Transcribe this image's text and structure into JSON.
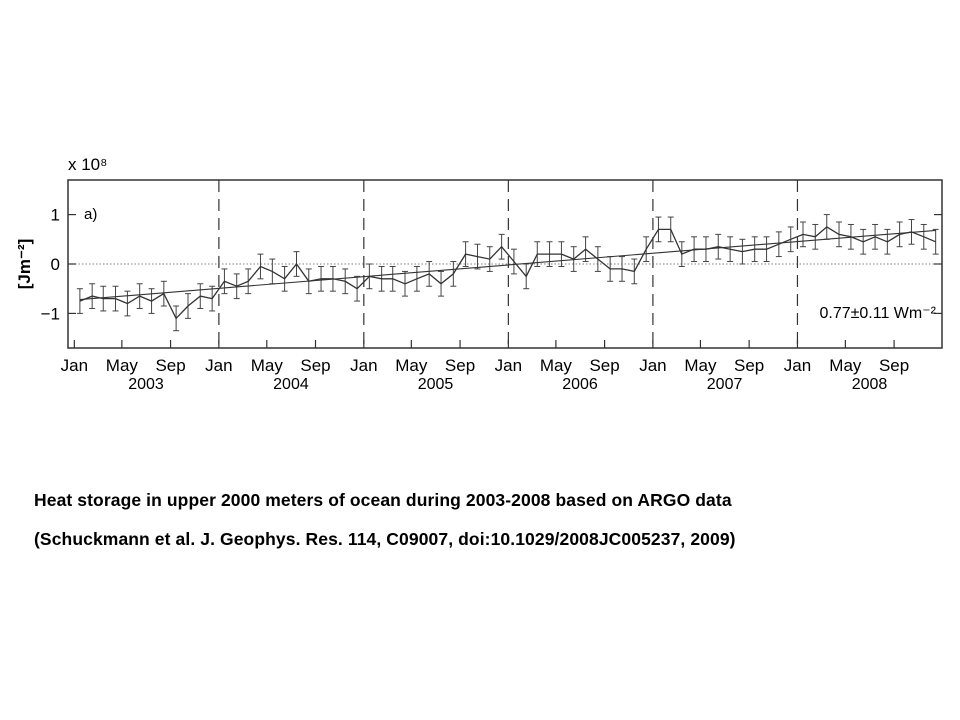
{
  "chart_data": {
    "type": "line",
    "panel_label": "a)",
    "ylabel": "[Jm⁻²]",
    "y_multiplier": "x 10⁸",
    "ylim": [
      -1.7,
      1.7
    ],
    "yticks": [
      -1,
      0,
      1
    ],
    "ytick_labels": [
      "−1",
      "0",
      "1"
    ],
    "xlim": [
      "2002-12-16",
      "2008-12-31"
    ],
    "month_ticks": [
      {
        "date": "2003-01-01",
        "label": "Jan"
      },
      {
        "date": "2003-05-01",
        "label": "May"
      },
      {
        "date": "2003-09-01",
        "label": "Sep"
      },
      {
        "date": "2004-01-01",
        "label": "Jan"
      },
      {
        "date": "2004-05-01",
        "label": "May"
      },
      {
        "date": "2004-09-01",
        "label": "Sep"
      },
      {
        "date": "2005-01-01",
        "label": "Jan"
      },
      {
        "date": "2005-05-01",
        "label": "May"
      },
      {
        "date": "2005-09-01",
        "label": "Sep"
      },
      {
        "date": "2006-01-01",
        "label": "Jan"
      },
      {
        "date": "2006-05-01",
        "label": "May"
      },
      {
        "date": "2006-09-01",
        "label": "Sep"
      },
      {
        "date": "2007-01-01",
        "label": "Jan"
      },
      {
        "date": "2007-05-01",
        "label": "May"
      },
      {
        "date": "2007-09-01",
        "label": "Sep"
      },
      {
        "date": "2008-01-01",
        "label": "Jan"
      },
      {
        "date": "2008-05-01",
        "label": "May"
      },
      {
        "date": "2008-09-01",
        "label": "Sep"
      }
    ],
    "year_labels": [
      {
        "date": "2003-07-01",
        "label": "2003"
      },
      {
        "date": "2004-07-01",
        "label": "2004"
      },
      {
        "date": "2005-07-01",
        "label": "2005"
      },
      {
        "date": "2006-07-01",
        "label": "2006"
      },
      {
        "date": "2007-07-01",
        "label": "2007"
      },
      {
        "date": "2008-07-01",
        "label": "2008"
      }
    ],
    "year_boundaries": [
      "2004-01-01",
      "2005-01-01",
      "2006-01-01",
      "2007-01-01",
      "2008-01-01"
    ],
    "series": [
      {
        "x": [
          "2003-01-15",
          "2003-02-15",
          "2003-03-15",
          "2003-04-15",
          "2003-05-15",
          "2003-06-15",
          "2003-07-15",
          "2003-08-15",
          "2003-09-15",
          "2003-10-15",
          "2003-11-15",
          "2003-12-15",
          "2004-01-15",
          "2004-02-15",
          "2004-03-15",
          "2004-04-15",
          "2004-05-15",
          "2004-06-15",
          "2004-07-15",
          "2004-08-15",
          "2004-09-15",
          "2004-10-15",
          "2004-11-15",
          "2004-12-15",
          "2005-01-15",
          "2005-02-15",
          "2005-03-15",
          "2005-04-15",
          "2005-05-15",
          "2005-06-15",
          "2005-07-15",
          "2005-08-15",
          "2005-09-15",
          "2005-10-15",
          "2005-11-15",
          "2005-12-15",
          "2006-01-15",
          "2006-02-15",
          "2006-03-15",
          "2006-04-15",
          "2006-05-15",
          "2006-06-15",
          "2006-07-15",
          "2006-08-15",
          "2006-09-15",
          "2006-10-15",
          "2006-11-15",
          "2006-12-15",
          "2007-01-15",
          "2007-02-15",
          "2007-03-15",
          "2007-04-15",
          "2007-05-15",
          "2007-06-15",
          "2007-07-15",
          "2007-08-15",
          "2007-09-15",
          "2007-10-15",
          "2007-11-15",
          "2007-12-15",
          "2008-01-15",
          "2008-02-15",
          "2008-03-15",
          "2008-04-15",
          "2008-05-15",
          "2008-06-15",
          "2008-07-15",
          "2008-08-15",
          "2008-09-15",
          "2008-10-15",
          "2008-11-15",
          "2008-12-15"
        ],
        "y": [
          -0.75,
          -0.65,
          -0.7,
          -0.7,
          -0.8,
          -0.65,
          -0.75,
          -0.6,
          -1.1,
          -0.85,
          -0.65,
          -0.7,
          -0.35,
          -0.45,
          -0.35,
          -0.05,
          -0.15,
          -0.3,
          0.0,
          -0.35,
          -0.3,
          -0.3,
          -0.35,
          -0.5,
          -0.25,
          -0.3,
          -0.3,
          -0.4,
          -0.3,
          -0.2,
          -0.4,
          -0.2,
          0.2,
          0.15,
          0.1,
          0.35,
          0.05,
          -0.25,
          0.2,
          0.2,
          0.2,
          0.1,
          0.3,
          0.1,
          -0.1,
          -0.1,
          -0.15,
          0.3,
          0.7,
          0.7,
          0.2,
          0.3,
          0.3,
          0.35,
          0.3,
          0.25,
          0.3,
          0.3,
          0.4,
          0.5,
          0.6,
          0.55,
          0.75,
          0.6,
          0.55,
          0.45,
          0.55,
          0.45,
          0.6,
          0.65,
          0.55,
          0.45
        ],
        "yerr": 0.25
      }
    ],
    "trend": {
      "x": [
        "2003-01-15",
        "2008-12-15"
      ],
      "y": [
        -0.72,
        0.68
      ]
    },
    "annotation": "0.77±0.11 Wm⁻²",
    "grid": false,
    "zero_line": "dotted"
  },
  "caption": {
    "line1": "Heat storage in upper 2000 meters of ocean during 2003-2008 based on ARGO data",
    "line2": "(Schuckmann et al. J. Geophys. Res. 114, C09007, doi:10.1029/2008JC005237, 2009)"
  }
}
